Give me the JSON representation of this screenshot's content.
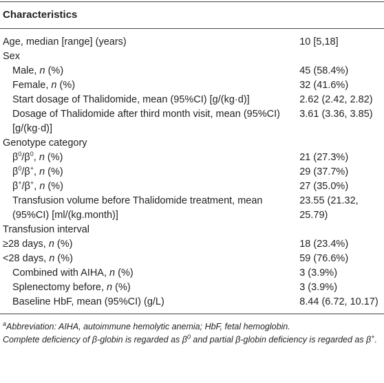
{
  "table": {
    "header": "Characteristics",
    "rows": [
      {
        "label": [
          "Age, median [range] (years)"
        ],
        "value": "10 [5,18]"
      },
      {
        "label": [
          "Sex"
        ]
      },
      {
        "label": [
          "Male, ",
          "n",
          " (%)"
        ],
        "value": "45 (58.4%)"
      },
      {
        "label": [
          "Female, ",
          "n",
          " (%)"
        ],
        "value": "32 (41.6%)"
      },
      {
        "label": [
          "Start dosage of Thalidomide, mean (95%CI) [g/(kg·d)]"
        ],
        "value": "2.62 (2.42, 2.82)"
      },
      {
        "label": [
          "Dosage of Thalidomide after third month visit, mean (95%CI) [g/(kg·d)]"
        ],
        "value": "3.61 (3.36, 3.85)"
      },
      {
        "label": [
          "Genotype category"
        ]
      },
      {
        "label": [
          "β",
          "0",
          "/β",
          "0",
          ", ",
          "n",
          " (%)"
        ],
        "value": "21 (27.3%)"
      },
      {
        "label": [
          "β",
          "0",
          "/β",
          "+",
          ", ",
          "n",
          " (%)"
        ],
        "value": "29 (37.7%)"
      },
      {
        "label": [
          "β",
          "+",
          "/β",
          "+",
          ", ",
          "n",
          " (%)"
        ],
        "value": "27 (35.0%)"
      },
      {
        "label": [
          "Transfusion volume before Thalidomide treatment, mean (95%CI) [ml/(kg.month)]"
        ],
        "value": "23.55 (21.32, 25.79)"
      },
      {
        "label": [
          "Transfusion interval"
        ]
      },
      {
        "label": [
          "≥28 days, ",
          "n",
          " (%)"
        ],
        "value": "18 (23.4%)"
      },
      {
        "label": [
          "<28 days, ",
          "n",
          " (%)"
        ],
        "value": "59 (76.6%)"
      },
      {
        "label": [
          "Combined with AIHA, ",
          "n",
          " (%)"
        ],
        "value": "3 (3.9%)"
      },
      {
        "label": [
          "Splenectomy before, ",
          "n",
          " (%)"
        ],
        "value": "3 (3.9%)"
      },
      {
        "label": [
          "Baseline HbF, mean (95%CI) (g/L)"
        ],
        "value": "8.44 (6.72, 10.17)"
      }
    ]
  },
  "footnotes": [
    [
      "a",
      "Abbreviation: AIHA, autoimmune hemolytic anemia; HbF, fetal hemoglobin."
    ],
    [
      "Complete deficiency of β-globin is regarded as β",
      "0",
      " and partial β-globin deficiency is regarded as β",
      "+",
      "."
    ]
  ]
}
